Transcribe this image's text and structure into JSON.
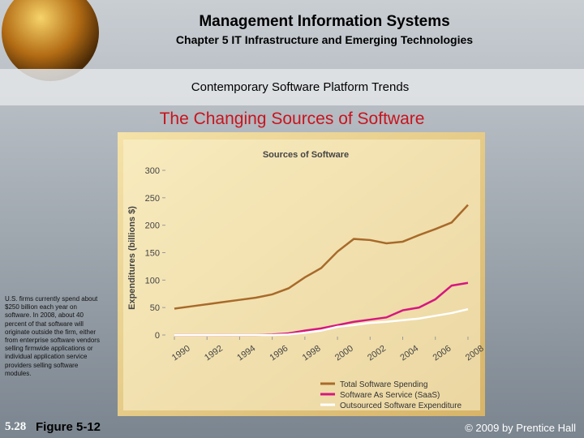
{
  "header": {
    "title": "Management Information Systems",
    "subtitle": "Chapter 5 IT Infrastructure and Emerging Technologies"
  },
  "section": "Contemporary Software Platform Trends",
  "heading": "The Changing Sources of Software",
  "sidebar_text": "U.S. firms currently spend about $250 billion each year on software. In 2008, about 40 percent of that software will originate outside the firm, either from enterprise software vendors selling firmwide applications or individual application service providers selling software modules.",
  "footer": {
    "slide_number": "5.28",
    "figure": "Figure 5-12",
    "copyright": "© 2009 by Prentice Hall"
  },
  "chart_data": {
    "type": "line",
    "title": "Sources of Software",
    "y_label": "Expenditures (billions $)",
    "x": [
      1990,
      1991,
      1992,
      1993,
      1994,
      1995,
      1996,
      1997,
      1998,
      1999,
      2000,
      2001,
      2002,
      2003,
      2004,
      2005,
      2006,
      2007,
      2008
    ],
    "series": [
      {
        "name": "Total Software Spending",
        "color": "#a86a2a",
        "values": [
          48,
          52,
          56,
          60,
          64,
          68,
          74,
          85,
          105,
          122,
          152,
          175,
          173,
          167,
          170,
          182,
          193,
          205,
          237
        ]
      },
      {
        "name": "Software As Service (SaaS)",
        "color": "#d6177f",
        "values": [
          0,
          0,
          0,
          0,
          0,
          0,
          1,
          3,
          8,
          12,
          18,
          24,
          28,
          32,
          45,
          50,
          65,
          90,
          95
        ]
      },
      {
        "name": "Outsourced Software Expenditure",
        "color": "#ffffff",
        "values": [
          0,
          0,
          0,
          0,
          0,
          0,
          0,
          1,
          4,
          8,
          15,
          18,
          22,
          24,
          27,
          30,
          35,
          40,
          47
        ]
      }
    ],
    "xlim": [
      1990,
      2008.5
    ],
    "xticks": [
      1990,
      1992,
      1994,
      1996,
      1998,
      2000,
      2002,
      2004,
      2006,
      2008
    ],
    "ylim": [
      0,
      300
    ],
    "yticks": [
      0,
      50,
      100,
      150,
      200,
      250,
      300
    ]
  }
}
